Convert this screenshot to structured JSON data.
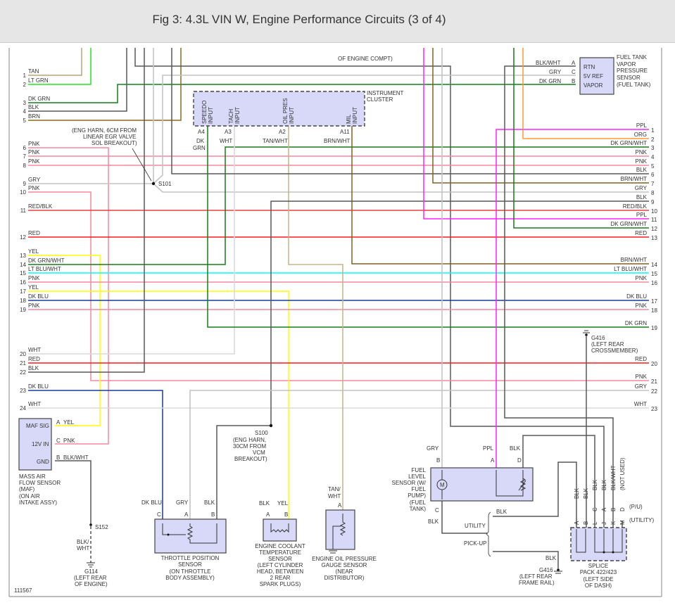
{
  "title": "Fig 3: 4.3L VIN W, Engine Performance Circuits (3 of 4)",
  "figure_id": "111567",
  "wire_colors": {
    "TAN": "#b9a478",
    "LT GRN": "#22e622",
    "DK GRN": "#11801a",
    "BLK": "#595959",
    "BRN": "#8a6a1e",
    "PNK": "#f4889f",
    "GRY": "#c4c4c4",
    "RED": "#ff1a1a",
    "RED/BLK": "#e84040",
    "YEL": "#ffff00",
    "DK GRN/WHT": "#1a7a1a",
    "LT BLU/WHT": "#00ffff",
    "DK BLU": "#1a3a9a",
    "WHT": "#dadada",
    "PPL": "#ff22ff",
    "ORG": "#ff9933",
    "BRN/WHT": "#806020",
    "TAN/WHT": "#c4b48a",
    "BLK/WHT": "#595959"
  },
  "left_rows": [
    {
      "num": "1",
      "color": "TAN"
    },
    {
      "num": "2",
      "color": "LT GRN"
    },
    {
      "num": "3",
      "color": "DK GRN"
    },
    {
      "num": "4",
      "color": "BLK"
    },
    {
      "num": "5",
      "color": "BRN"
    },
    {
      "num": "6",
      "color": "PNK"
    },
    {
      "num": "7",
      "color": "PNK"
    },
    {
      "num": "8",
      "color": "PNK"
    },
    {
      "num": "9",
      "color": "GRY"
    },
    {
      "num": "10",
      "color": "PNK"
    },
    {
      "num": "11",
      "color": "RED/BLK"
    },
    {
      "num": "12",
      "color": "RED"
    },
    {
      "num": "13",
      "color": "YEL"
    },
    {
      "num": "14",
      "color": "DK GRN/WHT"
    },
    {
      "num": "15",
      "color": "LT BLU/WHT"
    },
    {
      "num": "16",
      "color": "PNK"
    },
    {
      "num": "17",
      "color": "YEL"
    },
    {
      "num": "18",
      "color": "DK BLU"
    },
    {
      "num": "19",
      "color": "PNK"
    },
    {
      "num": "20",
      "color": "WHT"
    },
    {
      "num": "21",
      "color": "RED"
    },
    {
      "num": "22",
      "color": "BLK"
    },
    {
      "num": "23",
      "color": "DK BLU"
    },
    {
      "num": "24",
      "color": "WHT"
    }
  ],
  "right_rows": [
    {
      "num": "1",
      "color": "PPL"
    },
    {
      "num": "2",
      "color": "ORG"
    },
    {
      "num": "3",
      "color": "DK GRN/WHT"
    },
    {
      "num": "4",
      "color": "PNK"
    },
    {
      "num": "5",
      "color": "PNK"
    },
    {
      "num": "6",
      "color": "BLK"
    },
    {
      "num": "7",
      "color": "BRN/WHT"
    },
    {
      "num": "8",
      "color": "GRY"
    },
    {
      "num": "9",
      "color": "BLK"
    },
    {
      "num": "10",
      "color": "RED/BLK"
    },
    {
      "num": "11",
      "color": "PPL"
    },
    {
      "num": "12",
      "color": "DK GRN/WHT"
    },
    {
      "num": "13",
      "color": "RED"
    },
    {
      "num": "14",
      "color": "BRN/WHT"
    },
    {
      "num": "15",
      "color": "LT BLU/WHT"
    },
    {
      "num": "16",
      "color": "PNK"
    },
    {
      "num": "17",
      "color": "DK BLU"
    },
    {
      "num": "18",
      "color": "PNK"
    },
    {
      "num": "19",
      "color": "DK GRN"
    },
    {
      "num": "20",
      "color": "RED"
    },
    {
      "num": "21",
      "color": "PNK"
    },
    {
      "num": "22",
      "color": "GRY"
    },
    {
      "num": "23",
      "color": "WHT"
    }
  ],
  "top_note": "OF ENGINE COMPT)",
  "instrument_cluster": {
    "name": [
      "INSTRUMENT",
      "CLUSTER"
    ],
    "pins": [
      {
        "label": [
          "SPEEDO",
          "INPUT"
        ],
        "pin": "A4",
        "wire": [
          "DK",
          "GRN"
        ]
      },
      {
        "label": [
          "TACH",
          "INPUT"
        ],
        "pin": "A3",
        "wire": [
          "WHT"
        ]
      },
      {
        "label": [
          "OIL PRES",
          "INPUT"
        ],
        "pin": "A2",
        "wire": [
          "TAN/WHT"
        ]
      },
      {
        "label": [
          "MIL",
          "INPUT"
        ],
        "pin": "A11",
        "wire": [
          "BRN/WHT"
        ]
      }
    ]
  },
  "fuel_tank_sensor": {
    "name": [
      "FUEL TANK",
      "VAPOR",
      "PRESSURE",
      "SENSOR",
      "(FUEL TANK)"
    ],
    "pins": [
      {
        "wire": "BLK/WHT",
        "pin": "A",
        "label": "RTN"
      },
      {
        "wire": "GRY",
        "pin": "C",
        "label": "5V REF"
      },
      {
        "wire": "DK GRN",
        "pin": "B",
        "label": "VAPOR"
      }
    ]
  },
  "s101": {
    "id": "S101",
    "note": [
      "(ENG HARN, 6CM FROM",
      "LINEAR EGR VALVE",
      "SOL BREAKOUT)"
    ]
  },
  "s100": {
    "id": "S100",
    "note": [
      "(ENG HARN,",
      "30CM FROM",
      "VCM",
      "BREAKOUT)"
    ]
  },
  "s152": {
    "id": "S152",
    "wire": [
      "BLK/",
      "WHT"
    ]
  },
  "maf": {
    "pins": [
      {
        "label": "MAF SIG",
        "pin": "A",
        "wire": "YEL"
      },
      {
        "label": "12V IN",
        "pin": "C",
        "wire": "PNK"
      },
      {
        "label": "GND",
        "pin": "B",
        "wire": "BLK/WHT"
      }
    ],
    "name": [
      "MASS AIR",
      "FLOW SENSOR",
      "(MAF)",
      "(ON AIR",
      "INTAKE ASSY)"
    ]
  },
  "g114": {
    "id": "G114",
    "note": [
      "(LEFT REAR",
      "OF ENGINE)"
    ]
  },
  "tps": {
    "pins": [
      {
        "pin": "C",
        "wire": "DK BLU"
      },
      {
        "pin": "A",
        "wire": "GRY"
      },
      {
        "pin": "B",
        "wire": "BLK"
      }
    ],
    "name": [
      "THROTTLE POSITION",
      "SENSOR",
      "(ON THROTTLE",
      "BODY ASSEMBLY)"
    ]
  },
  "ect": {
    "pins": [
      {
        "pin": "A",
        "wire": "BLK"
      },
      {
        "pin": "B",
        "wire": "YEL"
      }
    ],
    "name": [
      "ENGINE COOLANT",
      "TEMPERATURE",
      "SENSOR",
      "(LEFT CYLINDER",
      "HEAD, BETWEEN",
      "2 REAR",
      "SPARK PLUGS)"
    ]
  },
  "oil_sensor": {
    "pin": "A",
    "wire": [
      "TAN/",
      "WHT"
    ],
    "name": [
      "ENGINE OIL PRESSURE",
      "GAUGE SENSOR",
      "(NEAR",
      "DISTRIBUTOR)"
    ]
  },
  "fuel_level": {
    "pins": [
      {
        "pin": "B",
        "wire": "GRY"
      },
      {
        "pin": "A",
        "wire": "PPL"
      },
      {
        "pin": "D",
        "wire": "BLK"
      },
      {
        "pin": "C",
        "wire": "BLK"
      }
    ],
    "motor": "M",
    "name": [
      "FUEL",
      "LEVEL",
      "SENSOR (W/",
      "FUEL",
      "PUMP)",
      "(FUEL",
      "TANK)"
    ]
  },
  "utility_pickup": {
    "utility": "UTILITY",
    "pickup": "PICK-UP",
    "utility_wire": "BLK",
    "pickup_wire": "BLK"
  },
  "g416_frame": {
    "id": "G416",
    "note": [
      "(LEFT REAR",
      "FRAME RAIL)"
    ]
  },
  "g416_cross": {
    "id": "G416",
    "note": [
      "(LEFT REAR",
      "CROSSMEMBER)"
    ]
  },
  "splice_pack": {
    "wires": [
      "BLK",
      "BLK",
      "BLK",
      "BLK",
      "BLK/WHT",
      "(NOT USED)"
    ],
    "pu_pins": [
      "",
      "",
      "C",
      "A",
      "B",
      "D"
    ],
    "util_pins": [
      "A",
      "B",
      "L",
      "J",
      "K",
      "M"
    ],
    "pu_label": "(P/U)",
    "util_label": "(UTILITY)",
    "name": [
      "SPLICE",
      "PACK 422/423",
      "(LEFT SIDE",
      "OF DASH)"
    ]
  }
}
